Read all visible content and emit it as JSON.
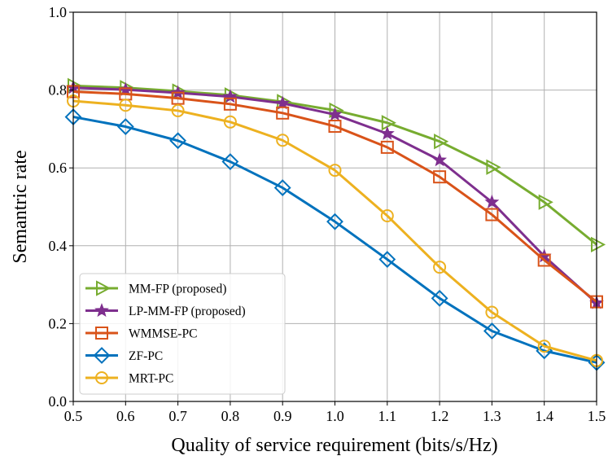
{
  "chart_data": {
    "type": "line",
    "title": "",
    "xlabel": "Quality of service requirement (bits/s/Hz)",
    "ylabel": "Semantric rate",
    "xlim": [
      0.5,
      1.5
    ],
    "ylim": [
      0.0,
      1.0
    ],
    "grid": true,
    "legend_position": "bottom-left",
    "x": [
      0.5,
      0.6,
      0.7,
      0.8,
      0.9,
      1.0,
      1.1,
      1.2,
      1.3,
      1.4,
      1.5
    ],
    "x_ticks": [
      "0.5",
      "0.6",
      "0.7",
      "0.8",
      "0.9",
      "1.0",
      "1.1",
      "1.2",
      "1.3",
      "1.4",
      "1.5"
    ],
    "y_ticks": [
      "0.0",
      "0.2",
      "0.4",
      "0.6",
      "0.8",
      "1.0"
    ],
    "series": [
      {
        "name": "MM-FP (proposed)",
        "marker": "triangle-right",
        "color": "#77ac30",
        "values": [
          0.811,
          0.806,
          0.797,
          0.787,
          0.77,
          0.748,
          0.716,
          0.668,
          0.602,
          0.512,
          0.403
        ]
      },
      {
        "name": "LP-MM-FP (proposed)",
        "marker": "star",
        "color": "#7e2f8e",
        "values": [
          0.806,
          0.801,
          0.793,
          0.783,
          0.766,
          0.737,
          0.688,
          0.62,
          0.512,
          0.373,
          0.253
        ]
      },
      {
        "name": "WMMSE-PC",
        "marker": "square",
        "color": "#d95319",
        "values": [
          0.796,
          0.79,
          0.779,
          0.764,
          0.741,
          0.707,
          0.653,
          0.577,
          0.48,
          0.363,
          0.256
        ]
      },
      {
        "name": "ZF-PC",
        "marker": "diamond",
        "color": "#0072bd",
        "values": [
          0.731,
          0.706,
          0.67,
          0.616,
          0.549,
          0.462,
          0.365,
          0.265,
          0.181,
          0.13,
          0.1
        ]
      },
      {
        "name": "MRT-PC",
        "marker": "circle",
        "color": "#edb120",
        "values": [
          0.772,
          0.761,
          0.747,
          0.718,
          0.671,
          0.594,
          0.477,
          0.345,
          0.229,
          0.142,
          0.105
        ]
      }
    ]
  }
}
